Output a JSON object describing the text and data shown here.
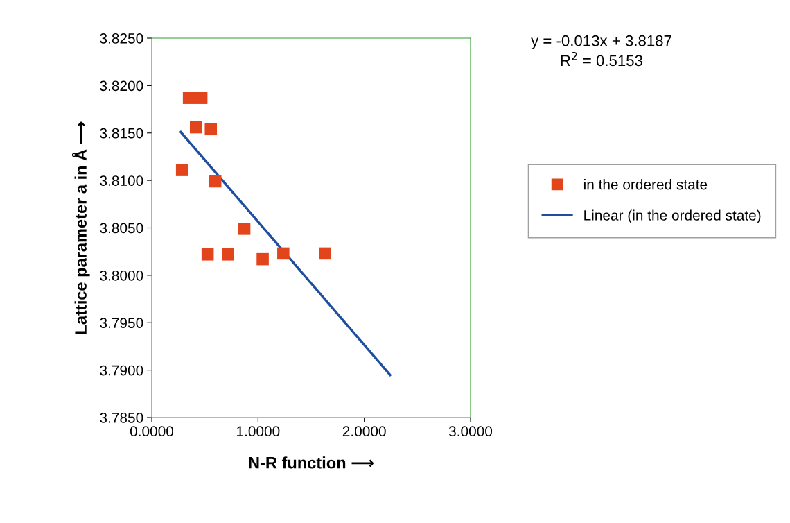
{
  "chart_data": {
    "type": "scatter",
    "xlabel": "N-R function ⟶",
    "ylabel": "Lattice parameter a in Å ⟶",
    "xlim": [
      0,
      3
    ],
    "xticks": [
      {
        "value": 0,
        "label": "0.0000"
      },
      {
        "value": 1,
        "label": "1.0000"
      },
      {
        "value": 2,
        "label": "2.0000"
      },
      {
        "value": 3,
        "label": "3.0000"
      }
    ],
    "ylim": [
      3.785,
      3.825
    ],
    "yticks": [
      {
        "value": 3.785,
        "label": "3.7850"
      },
      {
        "value": 3.79,
        "label": "3.7900"
      },
      {
        "value": 3.795,
        "label": "3.7950"
      },
      {
        "value": 3.8,
        "label": "3.8000"
      },
      {
        "value": 3.805,
        "label": "3.8050"
      },
      {
        "value": 3.81,
        "label": "3.8100"
      },
      {
        "value": 3.815,
        "label": "3.8150"
      },
      {
        "value": 3.82,
        "label": "3.8200"
      },
      {
        "value": 3.825,
        "label": "3.8250"
      }
    ],
    "grid": false,
    "legend": "right",
    "series": [
      {
        "name": "in the ordered state",
        "marker": "square",
        "color": "#e2451b",
        "x": [
          0.285,
          0.35,
          0.467,
          0.416,
          0.556,
          0.598,
          0.871,
          0.526,
          0.717,
          1.044,
          1.238,
          1.631
        ],
        "values": [
          3.8111,
          3.8187,
          3.8187,
          3.8156,
          3.8154,
          3.8099,
          3.8049,
          3.8022,
          3.8022,
          3.8017,
          3.8023,
          3.8023
        ]
      },
      {
        "name": "Linear (in the ordered state)",
        "type": "line",
        "color": "#1f4e9e",
        "x": [
          0.273,
          2.243
        ],
        "values": [
          3.8151,
          3.7895
        ]
      }
    ],
    "annotations": [
      "y = -0.013x + 3.8187\nR$^{2}$ = 0.5153"
    ]
  }
}
